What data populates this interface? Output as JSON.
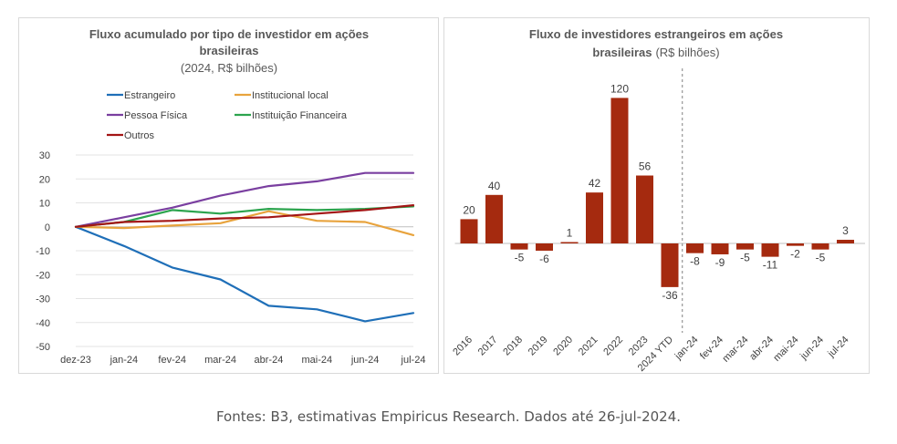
{
  "caption": "Fontes: B3, estimativas Empiricus Research. Dados até 26-jul-2024.",
  "chart_data": [
    {
      "type": "line",
      "title_line1": "Fluxo acumulado por tipo de investidor em ações",
      "title_line2": "brasileiras",
      "subtitle": "(2024, R$ bilhões)",
      "x": [
        "dez-23",
        "jan-24",
        "fev-24",
        "mar-24",
        "abr-24",
        "mai-24",
        "jun-24",
        "jul-24"
      ],
      "ylim": [
        -50,
        30
      ],
      "yticks": [
        30,
        20,
        10,
        0,
        -10,
        -20,
        -30,
        -40,
        -50
      ],
      "grid": true,
      "legend_position": "top",
      "series": [
        {
          "name": "Estrangeiro",
          "color": "#1f6fb8",
          "values": [
            0,
            -8,
            -17,
            -22,
            -33,
            -34.5,
            -39.5,
            -36
          ]
        },
        {
          "name": "Institucional local",
          "color": "#e8a33d",
          "values": [
            0,
            -0.5,
            0.5,
            1.5,
            6.5,
            2.5,
            2,
            -3.5
          ]
        },
        {
          "name": "Pessoa Física",
          "color": "#7a3fa0",
          "values": [
            0,
            4,
            8,
            13,
            17,
            19,
            22.5,
            22.5
          ]
        },
        {
          "name": "Instituição Financeira",
          "color": "#2ca44e",
          "values": [
            0,
            2,
            7,
            5.5,
            7.5,
            7,
            7.5,
            8.5
          ]
        },
        {
          "name": "Outros",
          "color": "#a31515",
          "values": [
            0,
            2,
            2.5,
            3.5,
            4,
            5.5,
            7,
            9
          ]
        }
      ]
    },
    {
      "type": "bar",
      "title_line1": "Fluxo de investidores estrangeiros em ações",
      "title_line2_bold": "brasileiras",
      "title_line2_unit": "(R$ bilhões)",
      "categories": [
        "2016",
        "2017",
        "2018",
        "2019",
        "2020",
        "2021",
        "2022",
        "2023",
        "2024 YTD",
        "jan-24",
        "fev-24",
        "mar-24",
        "abr-24",
        "mai-24",
        "jun-24",
        "jul-24"
      ],
      "values": [
        20,
        40,
        -5,
        -6,
        1,
        42,
        120,
        56,
        -36,
        -8,
        -9,
        -5,
        -11,
        -2,
        -5,
        3
      ],
      "labels": [
        "20",
        "40",
        "-5",
        "-6",
        "1",
        "42",
        "120",
        "56",
        "-36",
        "-8",
        "-9",
        "-5",
        "-11",
        "-2",
        "-5",
        "3"
      ],
      "bar_color": "#a52a0f",
      "ylim": [
        -50,
        130
      ],
      "separator_after": "2024 YTD"
    }
  ]
}
